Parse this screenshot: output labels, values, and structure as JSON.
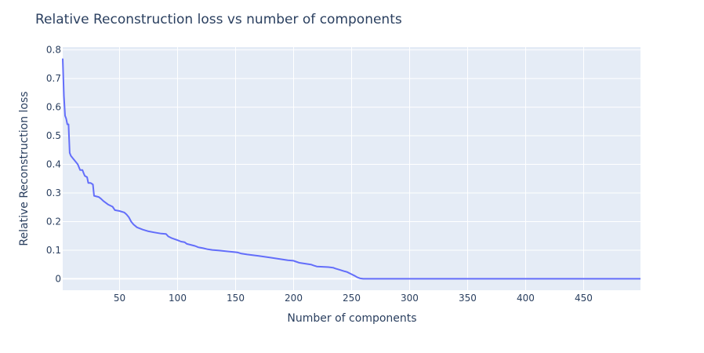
{
  "chart_data": {
    "type": "line",
    "title": "Relative Reconstruction loss vs number of components",
    "xlabel": "Number of components",
    "ylabel": "Relative Reconstruction loss",
    "xlim": [
      1,
      499
    ],
    "ylim": [
      -0.04,
      0.81
    ],
    "x_ticks": [
      50,
      100,
      150,
      200,
      250,
      300,
      350,
      400,
      450
    ],
    "y_ticks": [
      0,
      0.1,
      0.2,
      0.3,
      0.4,
      0.5,
      0.6,
      0.7,
      0.8
    ],
    "y_tick_labels": [
      "0",
      "0.1",
      "0.2",
      "0.3",
      "0.4",
      "0.5",
      "0.6",
      "0.7",
      "0.8"
    ],
    "grid": true,
    "colors": {
      "plot_bg": "#e5ecf6",
      "grid": "#ffffff",
      "line": "#636efa",
      "text": "#2a3f5f"
    },
    "series": [
      {
        "x": [
          1,
          2,
          3,
          4,
          5,
          6,
          7,
          8,
          10,
          12,
          14,
          16,
          18,
          19,
          20,
          22,
          23,
          25,
          27,
          28,
          30,
          32,
          34,
          36,
          40,
          44,
          46,
          50,
          54,
          56,
          58,
          60,
          62,
          65,
          70,
          75,
          80,
          86,
          90,
          92,
          95,
          100,
          103,
          106,
          108,
          110,
          115,
          118,
          122,
          126,
          130,
          135,
          140,
          145,
          150,
          152,
          155,
          160,
          170,
          180,
          185,
          190,
          195,
          200,
          202,
          205,
          210,
          215,
          217,
          220,
          230,
          234,
          236,
          240,
          244,
          246,
          250,
          253,
          255,
          257,
          258,
          260,
          300,
          350,
          400,
          450,
          499
        ],
        "y": [
          0.77,
          0.64,
          0.57,
          0.56,
          0.54,
          0.54,
          0.44,
          0.43,
          0.42,
          0.41,
          0.4,
          0.38,
          0.38,
          0.37,
          0.36,
          0.355,
          0.335,
          0.335,
          0.33,
          0.29,
          0.288,
          0.286,
          0.28,
          0.272,
          0.26,
          0.252,
          0.24,
          0.237,
          0.232,
          0.225,
          0.215,
          0.2,
          0.19,
          0.18,
          0.172,
          0.166,
          0.162,
          0.158,
          0.157,
          0.148,
          0.142,
          0.135,
          0.13,
          0.128,
          0.122,
          0.12,
          0.115,
          0.11,
          0.107,
          0.103,
          0.101,
          0.099,
          0.097,
          0.095,
          0.093,
          0.092,
          0.088,
          0.085,
          0.08,
          0.074,
          0.071,
          0.068,
          0.065,
          0.063,
          0.06,
          0.056,
          0.053,
          0.05,
          0.047,
          0.043,
          0.041,
          0.039,
          0.036,
          0.031,
          0.026,
          0.024,
          0.016,
          0.01,
          0.005,
          0.002,
          0.001,
          0.0,
          0.0,
          0.0,
          0.0,
          0.0,
          0.0
        ]
      }
    ]
  }
}
